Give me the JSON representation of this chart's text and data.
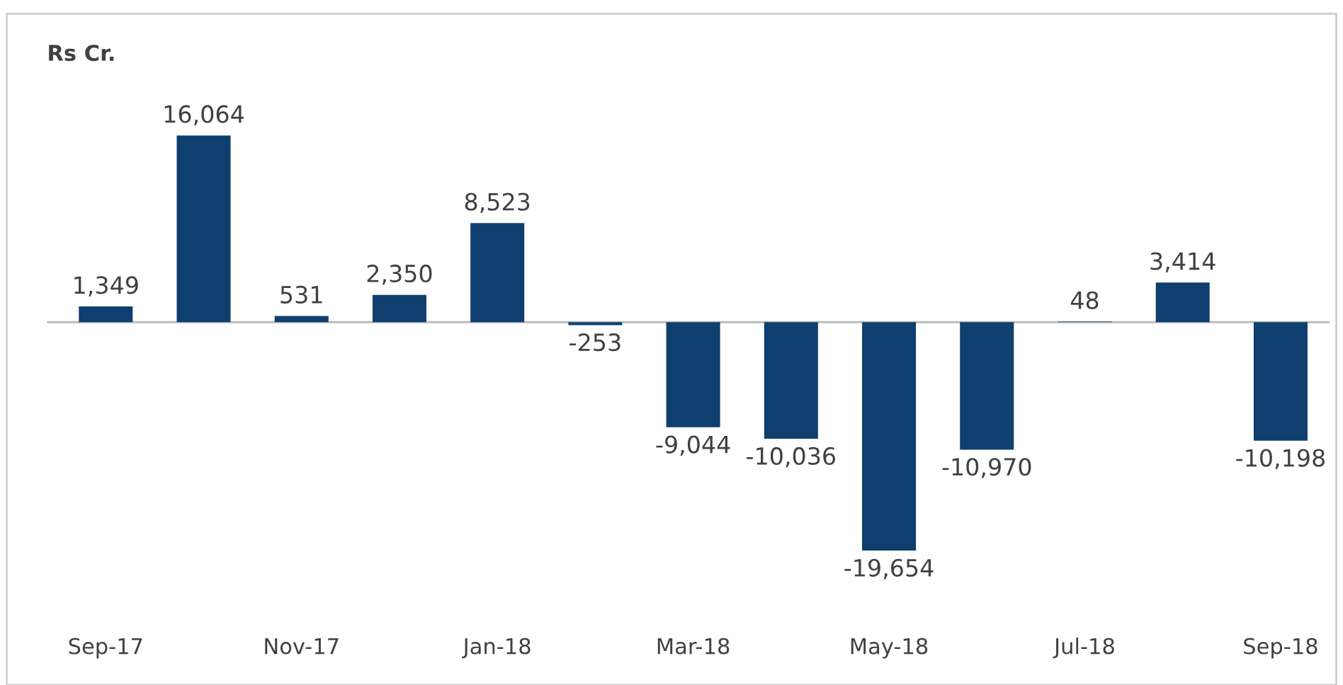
{
  "chart_data": {
    "type": "bar",
    "ylabel": "Rs Cr.",
    "categories": [
      "Sep-17",
      null,
      "Nov-17",
      null,
      "Jan-18",
      null,
      "Mar-18",
      null,
      "May-18",
      null,
      "Jul-18",
      null,
      "Sep-18"
    ],
    "values": [
      1349,
      16064,
      531,
      2350,
      8523,
      -253,
      -9044,
      -10036,
      -19654,
      -10970,
      48,
      3414,
      -10198
    ],
    "value_labels": [
      "1,349",
      "16,064",
      "531",
      "2,350",
      "8,523",
      "-253",
      "-9,044",
      "-10,036",
      "-19,654",
      "-10,970",
      "48",
      "3,414",
      "-10,198"
    ],
    "color": "#0e3f6e",
    "grid": false
  }
}
